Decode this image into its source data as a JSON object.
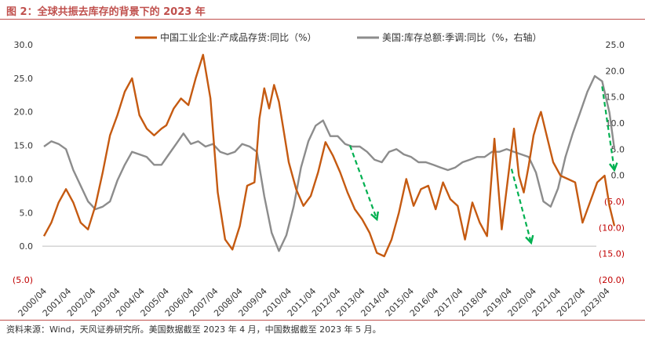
{
  "title": "图 2：全球共振去库存的背景下的 2023 年",
  "source": "资料来源：Wind，天风证券研究所。美国数据截至 2023 年 4 月，中国数据截至 2023 年 5 月。",
  "chart_data": {
    "type": "line",
    "legend_location": "top",
    "x_labels": [
      "2000/04",
      "2001/04",
      "2002/04",
      "2003/04",
      "2004/04",
      "2005/04",
      "2006/04",
      "2007/04",
      "2008/04",
      "2009/04",
      "2010/04",
      "2011/04",
      "2012/04",
      "2013/04",
      "2014/04",
      "2015/04",
      "2016/04",
      "2017/04",
      "2018/04",
      "2019/04",
      "2020/04",
      "2021/04",
      "2022/04",
      "2023/04"
    ],
    "y_left": {
      "min": -5,
      "max": 30,
      "ticks": [
        -5,
        0,
        5,
        10,
        15,
        20,
        25,
        30
      ],
      "tick_labels": [
        "(5.0)",
        "0.0",
        "5.0",
        "10.0",
        "15.0",
        "20.0",
        "25.0",
        "30.0"
      ]
    },
    "y_right": {
      "min": -20,
      "max": 25,
      "ticks": [
        -20,
        -15,
        -10,
        -5,
        0,
        5,
        10,
        15,
        20,
        25
      ],
      "tick_labels": [
        "(20.0)",
        "(15.0)",
        "(10.0)",
        "(5.0)",
        "0.0",
        "5.0",
        "10.0",
        "15.0",
        "20.0",
        "25.0"
      ]
    },
    "colors": {
      "china": "#c55a11",
      "us": "#8c8c8c",
      "arrow": "#00b050",
      "negative_label": "#c00000"
    },
    "series": [
      {
        "name": "中国工业企业:产成品存货:同比（%）",
        "axis": "left",
        "x": [
          2000.0,
          2000.3,
          2000.6,
          2000.9,
          2001.2,
          2001.5,
          2001.8,
          2002.1,
          2002.4,
          2002.7,
          2003.0,
          2003.3,
          2003.6,
          2003.9,
          2004.2,
          2004.5,
          2004.8,
          2005.0,
          2005.3,
          2005.6,
          2005.9,
          2006.2,
          2006.5,
          2006.8,
          2007.1,
          2007.4,
          2007.7,
          2008.0,
          2008.3,
          2008.6,
          2008.8,
          2009.0,
          2009.2,
          2009.4,
          2009.6,
          2009.8,
          2010.0,
          2010.3,
          2010.6,
          2010.9,
          2011.2,
          2011.5,
          2011.8,
          2012.1,
          2012.4,
          2012.7,
          2013.0,
          2013.3,
          2013.6,
          2013.9,
          2014.2,
          2014.5,
          2014.8,
          2015.1,
          2015.4,
          2015.7,
          2016.0,
          2016.3,
          2016.6,
          2016.9,
          2017.2,
          2017.5,
          2017.8,
          2018.1,
          2018.4,
          2018.7,
          2019.0,
          2019.2,
          2019.4,
          2019.6,
          2019.8,
          2020.0,
          2020.2,
          2020.3,
          2020.5,
          2020.8,
          2021.1,
          2021.4,
          2021.7,
          2022.0,
          2022.3,
          2022.6,
          2022.9,
          2023.1,
          2023.3
        ],
        "values": [
          1.5,
          3.5,
          6.5,
          8.5,
          6.5,
          3.5,
          2.5,
          6.0,
          11.0,
          16.5,
          19.5,
          23.0,
          25.0,
          19.5,
          17.5,
          16.5,
          17.5,
          18.0,
          20.5,
          22.0,
          21.0,
          25.0,
          28.5,
          22.0,
          8.0,
          1.0,
          -0.5,
          3.0,
          9.0,
          9.5,
          19.0,
          23.5,
          20.5,
          24.0,
          21.5,
          17.0,
          12.5,
          8.5,
          6.0,
          7.5,
          11.0,
          15.5,
          13.5,
          11.0,
          8.0,
          5.5,
          4.0,
          2.0,
          -1.0,
          -1.5,
          1.0,
          5.0,
          10.0,
          6.0,
          8.5,
          9.0,
          5.5,
          9.5,
          7.0,
          6.0,
          1.0,
          6.5,
          3.5,
          1.5,
          16.0,
          2.5,
          11.5,
          17.5,
          10.5,
          8.0,
          12.0,
          16.5,
          19.0,
          20.0,
          17.0,
          12.5,
          10.5,
          10.0,
          9.5,
          3.5,
          6.5,
          9.5,
          10.5,
          6.0,
          3.0
        ]
      },
      {
        "name": "美国:库存总额:季调:同比（%，右轴）",
        "axis": "right",
        "x": [
          2000.0,
          2000.3,
          2000.6,
          2000.9,
          2001.2,
          2001.5,
          2001.8,
          2002.1,
          2002.4,
          2002.7,
          2003.0,
          2003.3,
          2003.6,
          2003.9,
          2004.2,
          2004.5,
          2004.8,
          2005.1,
          2005.4,
          2005.7,
          2006.0,
          2006.3,
          2006.6,
          2006.9,
          2007.2,
          2007.5,
          2007.8,
          2008.1,
          2008.4,
          2008.7,
          2009.0,
          2009.3,
          2009.6,
          2009.9,
          2010.2,
          2010.5,
          2010.8,
          2011.1,
          2011.4,
          2011.7,
          2012.0,
          2012.3,
          2012.6,
          2012.9,
          2013.2,
          2013.5,
          2013.8,
          2014.1,
          2014.4,
          2014.7,
          2015.0,
          2015.3,
          2015.6,
          2015.9,
          2016.2,
          2016.5,
          2016.8,
          2017.1,
          2017.4,
          2017.7,
          2018.0,
          2018.3,
          2018.6,
          2018.9,
          2019.2,
          2019.5,
          2019.8,
          2020.1,
          2020.4,
          2020.7,
          2021.0,
          2021.3,
          2021.6,
          2021.9,
          2022.2,
          2022.5,
          2022.8,
          2023.1,
          2023.3
        ],
        "values": [
          5.5,
          6.5,
          6.0,
          5.0,
          1.0,
          -2.0,
          -5.0,
          -6.5,
          -6.0,
          -5.0,
          -1.0,
          2.0,
          4.5,
          4.0,
          3.5,
          2.0,
          2.0,
          4.0,
          6.0,
          8.0,
          6.0,
          6.5,
          5.5,
          6.0,
          4.5,
          4.0,
          4.5,
          6.0,
          5.5,
          4.5,
          -4.0,
          -11.0,
          -14.5,
          -11.5,
          -6.0,
          1.5,
          6.5,
          9.5,
          10.5,
          7.5,
          7.5,
          6.0,
          5.5,
          5.5,
          4.5,
          3.0,
          2.5,
          4.5,
          5.0,
          4.0,
          3.5,
          2.5,
          2.5,
          2.0,
          1.5,
          1.0,
          1.5,
          2.5,
          3.0,
          3.5,
          3.5,
          4.5,
          4.5,
          5.0,
          4.5,
          4.0,
          3.5,
          0.5,
          -5.0,
          -6.0,
          -2.5,
          3.5,
          8.0,
          12.0,
          16.0,
          19.0,
          18.0,
          12.0,
          5.0
        ]
      }
    ],
    "arrows": [
      {
        "axis": "left",
        "from": [
          2012.5,
          15.0
        ],
        "to": [
          2013.6,
          4.0
        ]
      },
      {
        "axis": "left",
        "from": [
          2019.1,
          11.5
        ],
        "to": [
          2019.9,
          0.5
        ]
      },
      {
        "axis": "right",
        "from": [
          2022.8,
          17.0
        ],
        "to": [
          2023.3,
          1.0
        ]
      }
    ]
  }
}
